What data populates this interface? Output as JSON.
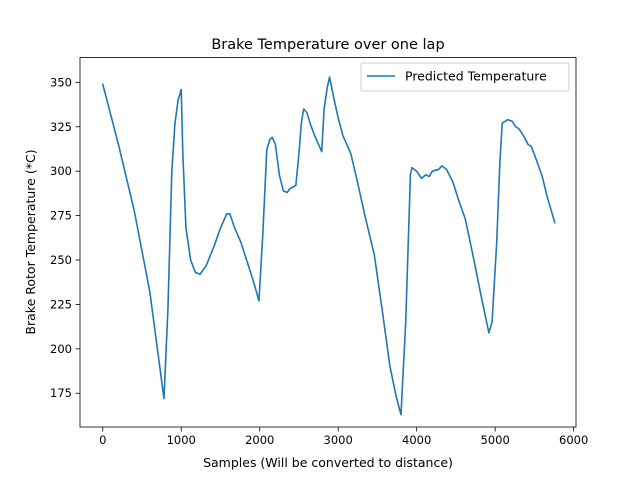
{
  "chart_data": {
    "type": "line",
    "title": "Brake Temperature over one lap",
    "xlabel": "Samples (Will be converted to distance)",
    "ylabel": "Brake Rotor Temperature (*C)",
    "xlim": [
      -290,
      6030
    ],
    "ylim": [
      156,
      364
    ],
    "xticks": [
      0,
      1000,
      2000,
      3000,
      4000,
      5000,
      6000
    ],
    "yticks": [
      175,
      200,
      225,
      250,
      275,
      300,
      325,
      350
    ],
    "legend": "top-right",
    "grid": false,
    "line_color": "#1f77b4",
    "series": [
      {
        "name": "Predicted Temperature",
        "points": [
          [
            0,
            349
          ],
          [
            200,
            315
          ],
          [
            400,
            278
          ],
          [
            600,
            232
          ],
          [
            780,
            172
          ],
          [
            830,
            222
          ],
          [
            880,
            300
          ],
          [
            920,
            327
          ],
          [
            960,
            340
          ],
          [
            1000,
            346
          ],
          [
            1020,
            310
          ],
          [
            1060,
            268
          ],
          [
            1120,
            250
          ],
          [
            1180,
            243
          ],
          [
            1240,
            242
          ],
          [
            1320,
            247
          ],
          [
            1420,
            258
          ],
          [
            1500,
            268
          ],
          [
            1580,
            276
          ],
          [
            1620,
            276
          ],
          [
            1680,
            268
          ],
          [
            1760,
            260
          ],
          [
            1840,
            249
          ],
          [
            1920,
            238
          ],
          [
            1990,
            227
          ],
          [
            2040,
            265
          ],
          [
            2090,
            312
          ],
          [
            2130,
            318
          ],
          [
            2160,
            319
          ],
          [
            2200,
            315
          ],
          [
            2250,
            298
          ],
          [
            2300,
            289
          ],
          [
            2350,
            288
          ],
          [
            2380,
            290
          ],
          [
            2460,
            292
          ],
          [
            2500,
            310
          ],
          [
            2530,
            327
          ],
          [
            2560,
            335
          ],
          [
            2600,
            333
          ],
          [
            2650,
            326
          ],
          [
            2700,
            320
          ],
          [
            2760,
            314
          ],
          [
            2790,
            311
          ],
          [
            2820,
            335
          ],
          [
            2860,
            347
          ],
          [
            2890,
            353
          ],
          [
            2940,
            342
          ],
          [
            3000,
            330
          ],
          [
            3060,
            320
          ],
          [
            3130,
            313
          ],
          [
            3160,
            310
          ],
          [
            3240,
            295
          ],
          [
            3340,
            275
          ],
          [
            3460,
            253
          ],
          [
            3560,
            222
          ],
          [
            3660,
            190
          ],
          [
            3740,
            173
          ],
          [
            3800,
            163
          ],
          [
            3860,
            215
          ],
          [
            3900,
            270
          ],
          [
            3920,
            298
          ],
          [
            3940,
            302
          ],
          [
            4000,
            300
          ],
          [
            4060,
            296
          ],
          [
            4120,
            298
          ],
          [
            4160,
            297
          ],
          [
            4200,
            300
          ],
          [
            4280,
            301
          ],
          [
            4320,
            303
          ],
          [
            4380,
            301
          ],
          [
            4460,
            294
          ],
          [
            4540,
            283
          ],
          [
            4620,
            273
          ],
          [
            4720,
            252
          ],
          [
            4820,
            230
          ],
          [
            4920,
            209
          ],
          [
            4960,
            215
          ],
          [
            5020,
            260
          ],
          [
            5060,
            305
          ],
          [
            5090,
            327
          ],
          [
            5160,
            329
          ],
          [
            5220,
            328
          ],
          [
            5260,
            325
          ],
          [
            5300,
            324
          ],
          [
            5360,
            320
          ],
          [
            5420,
            315
          ],
          [
            5460,
            314
          ],
          [
            5520,
            307
          ],
          [
            5600,
            297
          ],
          [
            5660,
            286
          ],
          [
            5760,
            271
          ]
        ]
      }
    ]
  }
}
